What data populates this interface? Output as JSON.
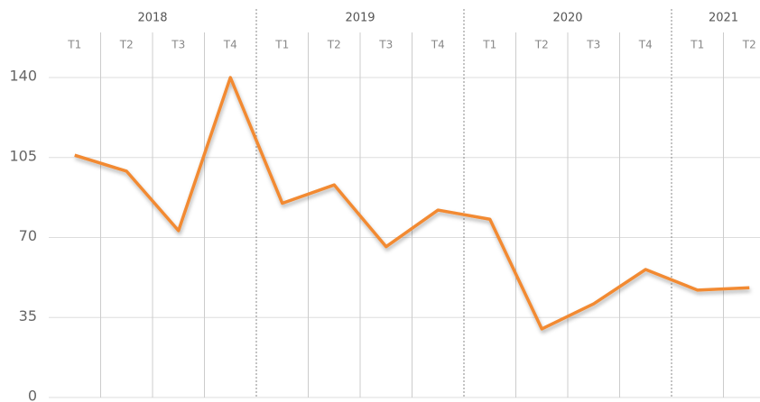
{
  "chart_data": {
    "type": "line",
    "years": [
      "2018",
      null,
      null,
      null,
      "2019",
      null,
      null,
      null,
      "2020",
      null,
      null,
      null,
      "2021",
      null
    ],
    "categories": [
      "T1",
      "T2",
      "T3",
      "T4",
      "T1",
      "T2",
      "T3",
      "T4",
      "T1",
      "T2",
      "T3",
      "T4",
      "T1",
      "T2"
    ],
    "series": [
      {
        "color": "#f28a33",
        "values": [
          106,
          99,
          73,
          140,
          85,
          93,
          66,
          82,
          78,
          30,
          41,
          56,
          47,
          48
        ]
      }
    ],
    "ylim": [
      0,
      140
    ],
    "yticks": [
      0,
      35,
      70,
      105,
      140
    ],
    "grid": true
  }
}
